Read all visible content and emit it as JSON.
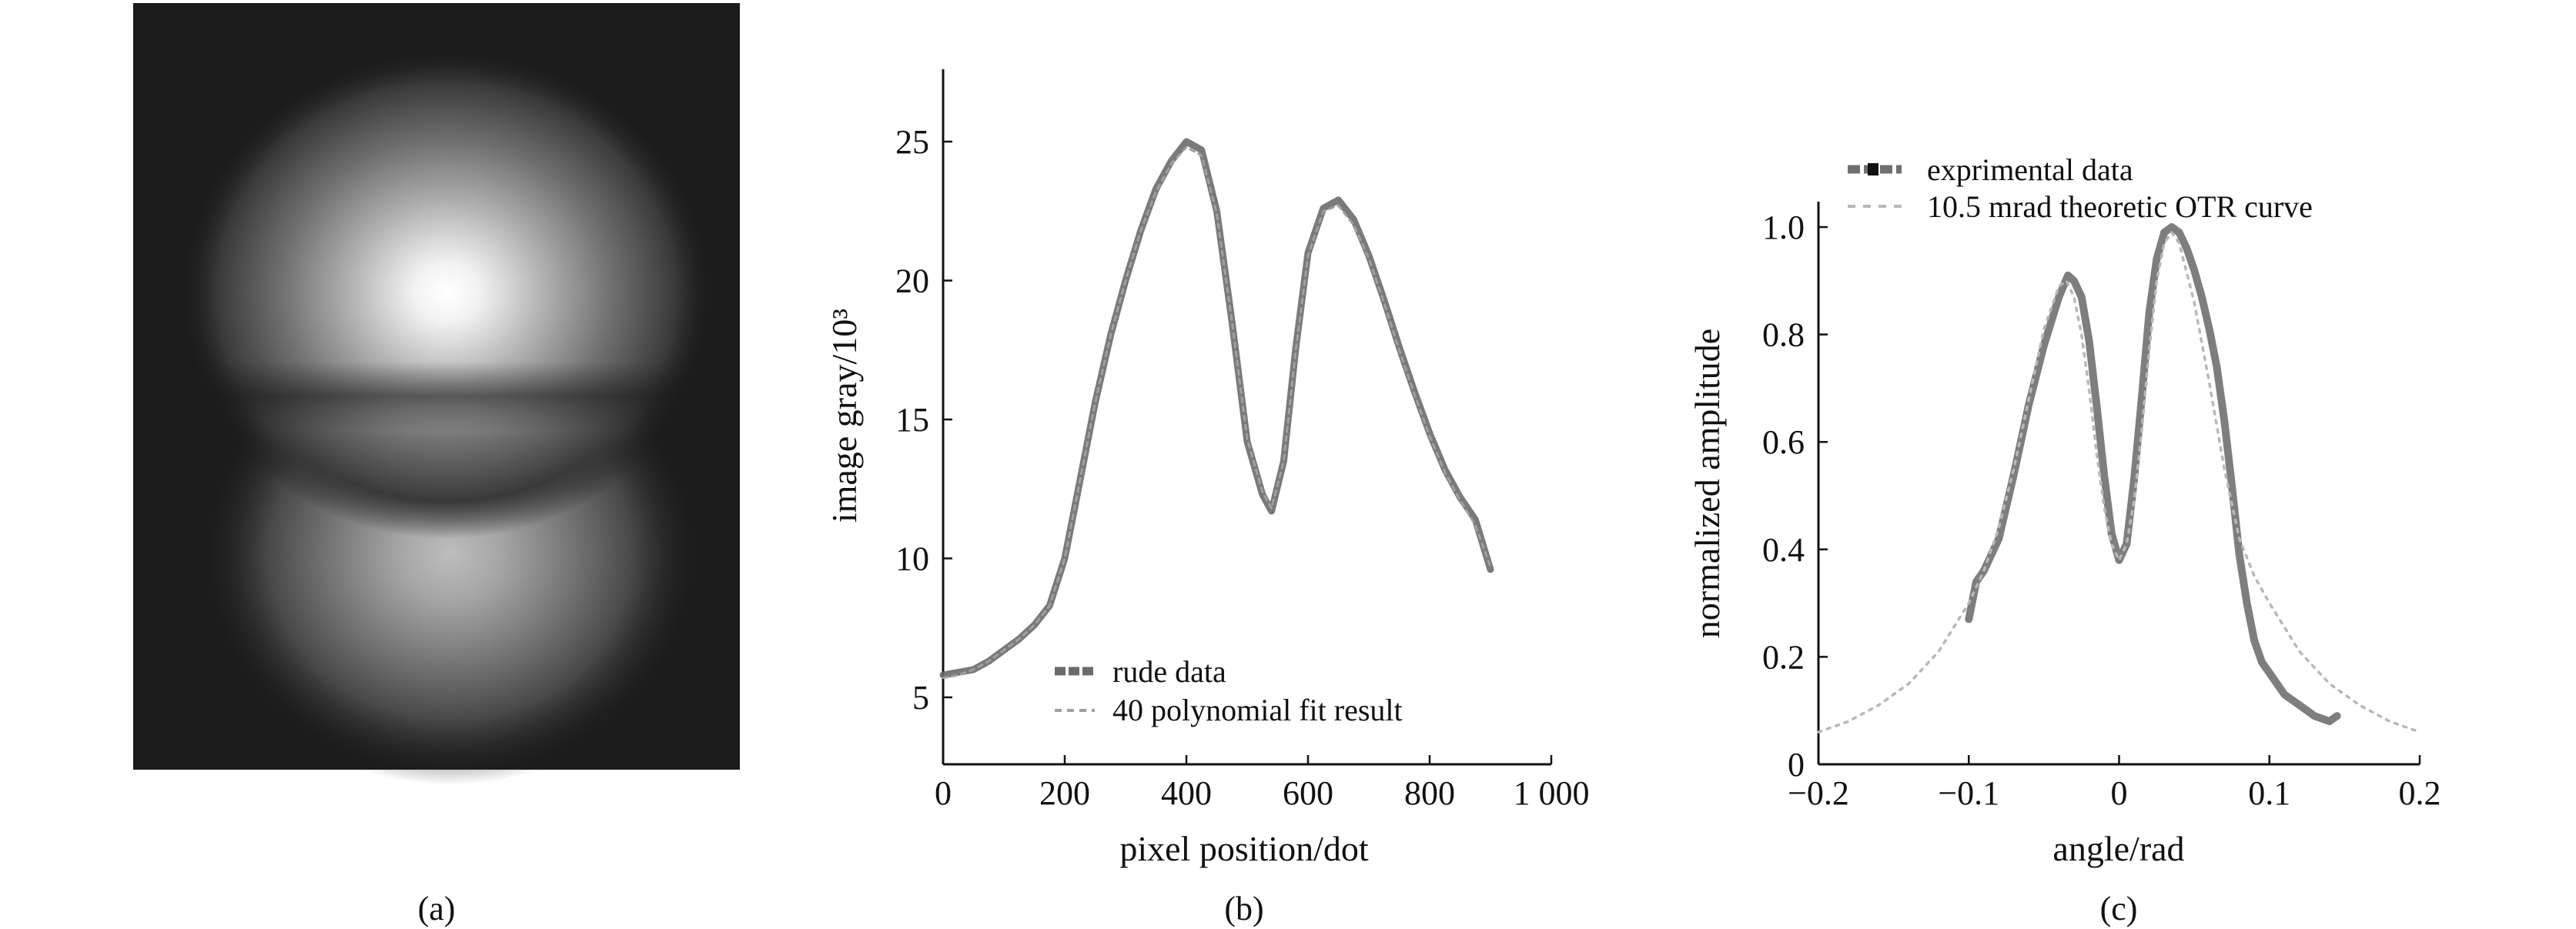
{
  "panels": {
    "a": {
      "caption": "(a)"
    },
    "b": {
      "caption": "(b)"
    },
    "c": {
      "caption": "(c)"
    }
  },
  "chart_data": [
    {
      "panel": "b",
      "type": "line",
      "title": "",
      "xlabel": "pixel position/dot",
      "ylabel": "image gray/10³",
      "xlim": [
        0,
        1000
      ],
      "ylim": [
        2.5,
        27.5
      ],
      "xticks": [
        0,
        200,
        400,
        600,
        800,
        1000
      ],
      "xtick_labels": [
        "0",
        "200",
        "400",
        "600",
        "800",
        "1 000"
      ],
      "yticks": [
        5,
        10,
        15,
        20,
        25
      ],
      "ytick_labels": [
        "5",
        "10",
        "15",
        "20",
        "25"
      ],
      "legend_position": "lower-left",
      "series": [
        {
          "name": "rude data",
          "color": "#6b6b6b",
          "x": [
            0,
            25,
            50,
            75,
            100,
            125,
            150,
            175,
            200,
            225,
            250,
            275,
            300,
            325,
            350,
            375,
            400,
            425,
            450,
            475,
            500,
            525,
            540,
            560,
            580,
            600,
            625,
            650,
            675,
            700,
            725,
            750,
            775,
            800,
            825,
            850,
            875,
            900
          ],
          "y": [
            5.8,
            5.9,
            6.0,
            6.3,
            6.7,
            7.1,
            7.6,
            8.3,
            10.0,
            12.8,
            15.6,
            18.0,
            20.0,
            21.8,
            23.3,
            24.3,
            25.0,
            24.7,
            22.5,
            18.5,
            14.2,
            12.3,
            11.7,
            13.5,
            17.6,
            21.0,
            22.6,
            22.9,
            22.2,
            20.9,
            19.3,
            17.6,
            16.0,
            14.5,
            13.2,
            12.2,
            11.4,
            9.6
          ]
        },
        {
          "name": "40 polynomial fit result",
          "color": "#a0a0a0",
          "x": [
            0,
            25,
            50,
            75,
            100,
            125,
            150,
            175,
            200,
            225,
            250,
            275,
            300,
            325,
            350,
            375,
            400,
            425,
            450,
            475,
            500,
            525,
            540,
            560,
            580,
            600,
            625,
            650,
            675,
            700,
            725,
            750,
            775,
            800,
            825,
            850,
            875,
            900
          ],
          "y": [
            5.7,
            5.8,
            6.0,
            6.3,
            6.7,
            7.1,
            7.6,
            8.3,
            10.0,
            12.8,
            15.6,
            18.0,
            20.0,
            21.8,
            23.2,
            24.2,
            24.8,
            24.5,
            22.4,
            18.5,
            14.3,
            12.4,
            11.8,
            13.5,
            17.5,
            20.9,
            22.5,
            22.7,
            22.0,
            20.8,
            19.2,
            17.5,
            15.9,
            14.4,
            13.1,
            12.1,
            11.2,
            9.7
          ]
        }
      ]
    },
    {
      "panel": "c",
      "type": "line",
      "title": "",
      "xlabel": "angle/rad",
      "ylabel": "normalized amplitude",
      "xlim": [
        -0.2,
        0.2
      ],
      "ylim": [
        0,
        1.08
      ],
      "xticks": [
        -0.2,
        -0.1,
        0,
        0.1,
        0.2
      ],
      "xtick_labels": [
        "−0.2",
        "−0.1",
        "0",
        "0.1",
        "0.2"
      ],
      "yticks": [
        0,
        0.2,
        0.4,
        0.6,
        0.8,
        1.0
      ],
      "ytick_labels": [
        "0",
        "0.2",
        "0.4",
        "0.6",
        "0.8",
        "1.0"
      ],
      "legend_position": "top-left",
      "series": [
        {
          "name": "exprimental data",
          "color": "#707070",
          "x": [
            -0.1,
            -0.095,
            -0.09,
            -0.08,
            -0.07,
            -0.06,
            -0.05,
            -0.04,
            -0.034,
            -0.03,
            -0.025,
            -0.02,
            -0.015,
            -0.01,
            -0.005,
            0,
            0.005,
            0.01,
            0.015,
            0.02,
            0.025,
            0.03,
            0.035,
            0.04,
            0.045,
            0.05,
            0.055,
            0.06,
            0.065,
            0.07,
            0.075,
            0.08,
            0.085,
            0.09,
            0.095,
            0.1,
            0.11,
            0.12,
            0.13,
            0.14,
            0.145
          ],
          "y": [
            0.27,
            0.34,
            0.36,
            0.42,
            0.54,
            0.67,
            0.78,
            0.87,
            0.91,
            0.9,
            0.87,
            0.79,
            0.67,
            0.54,
            0.43,
            0.38,
            0.41,
            0.53,
            0.68,
            0.84,
            0.94,
            0.99,
            1.0,
            0.99,
            0.96,
            0.92,
            0.87,
            0.81,
            0.74,
            0.64,
            0.52,
            0.39,
            0.3,
            0.23,
            0.19,
            0.17,
            0.13,
            0.11,
            0.09,
            0.08,
            0.09
          ]
        },
        {
          "name": "10.5 mrad theoretic OTR curve",
          "color": "#b8b8b8",
          "x": [
            -0.2,
            -0.18,
            -0.16,
            -0.14,
            -0.12,
            -0.1,
            -0.09,
            -0.08,
            -0.07,
            -0.06,
            -0.05,
            -0.04,
            -0.035,
            -0.03,
            -0.025,
            -0.02,
            -0.015,
            -0.01,
            -0.005,
            0,
            0.005,
            0.01,
            0.015,
            0.02,
            0.025,
            0.03,
            0.035,
            0.04,
            0.05,
            0.06,
            0.07,
            0.08,
            0.09,
            0.1,
            0.12,
            0.14,
            0.16,
            0.18,
            0.2
          ],
          "y": [
            0.06,
            0.08,
            0.11,
            0.15,
            0.21,
            0.3,
            0.36,
            0.44,
            0.55,
            0.68,
            0.81,
            0.89,
            0.9,
            0.87,
            0.8,
            0.7,
            0.58,
            0.48,
            0.41,
            0.38,
            0.41,
            0.49,
            0.62,
            0.77,
            0.9,
            0.97,
            0.99,
            0.97,
            0.86,
            0.71,
            0.55,
            0.42,
            0.35,
            0.3,
            0.21,
            0.15,
            0.11,
            0.08,
            0.06
          ]
        }
      ]
    }
  ]
}
